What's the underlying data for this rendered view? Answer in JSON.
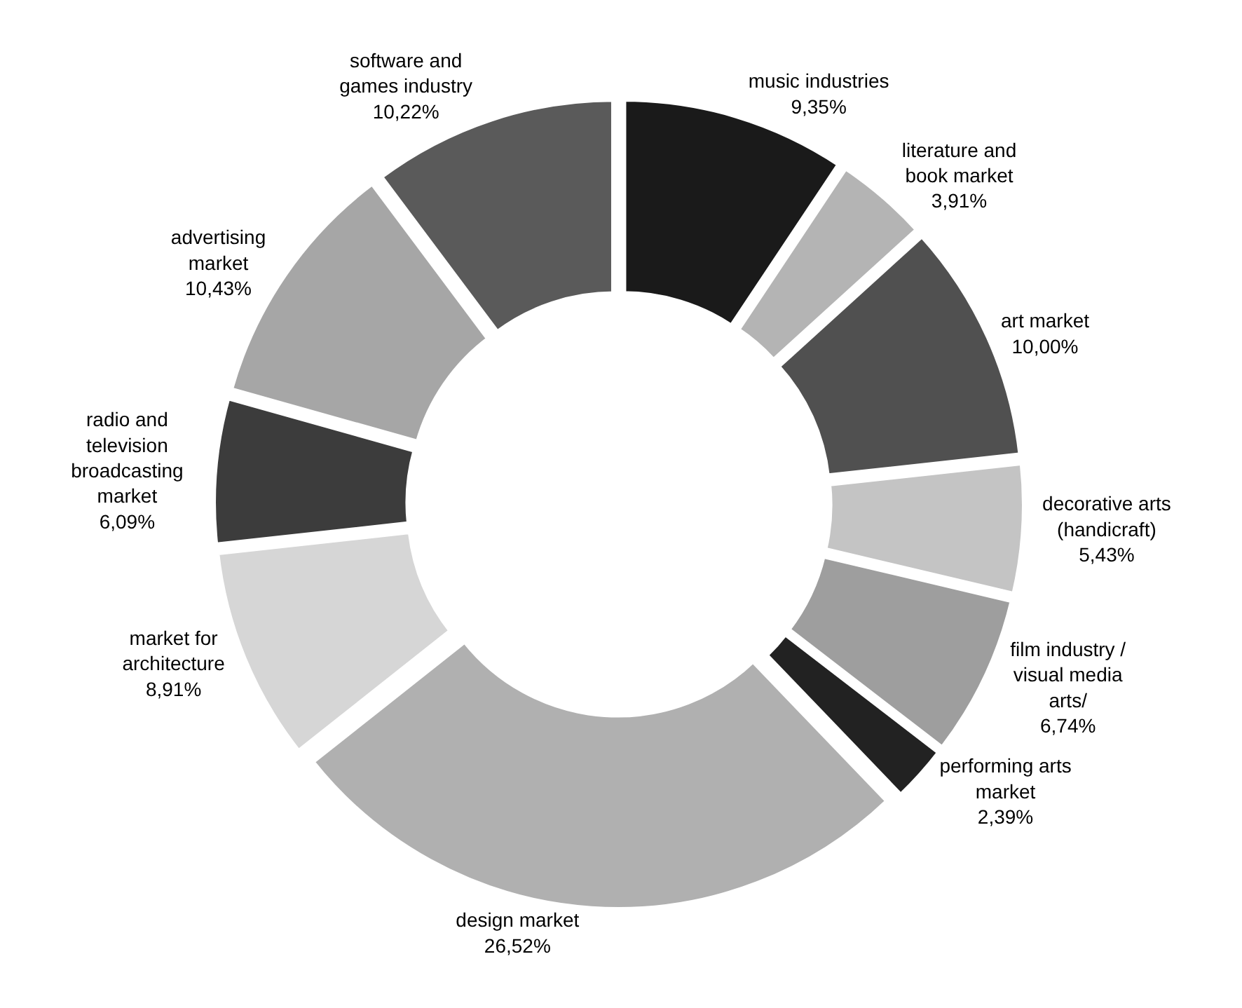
{
  "chart_data": {
    "type": "donut",
    "categories": [
      "music industries",
      "literature and book market",
      "art market",
      "decorative arts (handicraft)",
      "film industry / visual media arts/",
      "performing arts market",
      "design market",
      "market for architecture",
      "radio and television broadcasting market",
      "advertising market",
      "software and games industry"
    ],
    "values": [
      9.35,
      3.91,
      10.0,
      5.43,
      6.74,
      2.39,
      26.52,
      8.91,
      6.09,
      10.43,
      10.22
    ],
    "value_labels": [
      "9,35%",
      "3,91%",
      "10,00%",
      "5,43%",
      "6,74%",
      "2,39%",
      "26,52%",
      "8,91%",
      "6,09%",
      "10,43%",
      "10,22%"
    ],
    "colors": [
      "#1a1a1a",
      "#b4b4b4",
      "#505050",
      "#c4c4c4",
      "#9e9e9e",
      "#222222",
      "#b0b0b0",
      "#d6d6d6",
      "#3c3c3c",
      "#a6a6a6",
      "#5a5a5a"
    ],
    "legend": false
  }
}
